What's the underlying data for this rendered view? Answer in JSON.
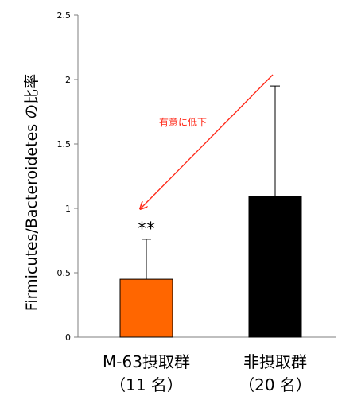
{
  "chart_data": {
    "type": "bar",
    "title": "",
    "xlabel": "",
    "ylabel": "Firmicutes/Bacteroidetes の比率",
    "ylim": [
      0,
      2.5
    ],
    "yticks": [
      0,
      0.5,
      1,
      1.5,
      2,
      2.5
    ],
    "ytick_labels": [
      "0",
      "0.5",
      "1",
      "1.5",
      "2",
      "2.5"
    ],
    "categories": [
      {
        "line1": "M-63摂取群",
        "line2": "（11 名）"
      },
      {
        "line1": "非摂取群",
        "line2": "（20 名）"
      }
    ],
    "values": [
      0.45,
      1.09
    ],
    "error_upper": [
      0.76,
      1.95
    ],
    "bar_colors": [
      "#ff6600",
      "#000000"
    ],
    "grid": false,
    "legend": "none",
    "annotations": {
      "significance": "**",
      "arrow_label": "有意に低下",
      "arrow_color": "#ff2a1a"
    }
  }
}
